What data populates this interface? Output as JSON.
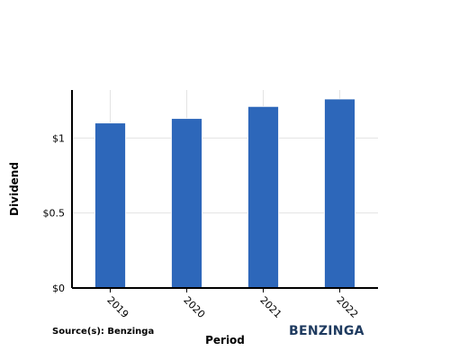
{
  "chart_data": {
    "type": "bar",
    "categories": [
      "2019",
      "2020",
      "2021",
      "2022"
    ],
    "values": [
      1.1,
      1.13,
      1.21,
      1.26
    ],
    "xlabel": "Period",
    "ylabel": "Dividend",
    "ylim": [
      0,
      1.32
    ],
    "yticks": [
      {
        "value": 0,
        "label": "$0"
      },
      {
        "value": 0.5,
        "label": "$0.5"
      },
      {
        "value": 1,
        "label": "$1"
      }
    ],
    "bar_color": "#2d67ba",
    "grid": true
  },
  "footer": {
    "source": "Source(s): Benzinga",
    "brand": "BENZINGA"
  }
}
